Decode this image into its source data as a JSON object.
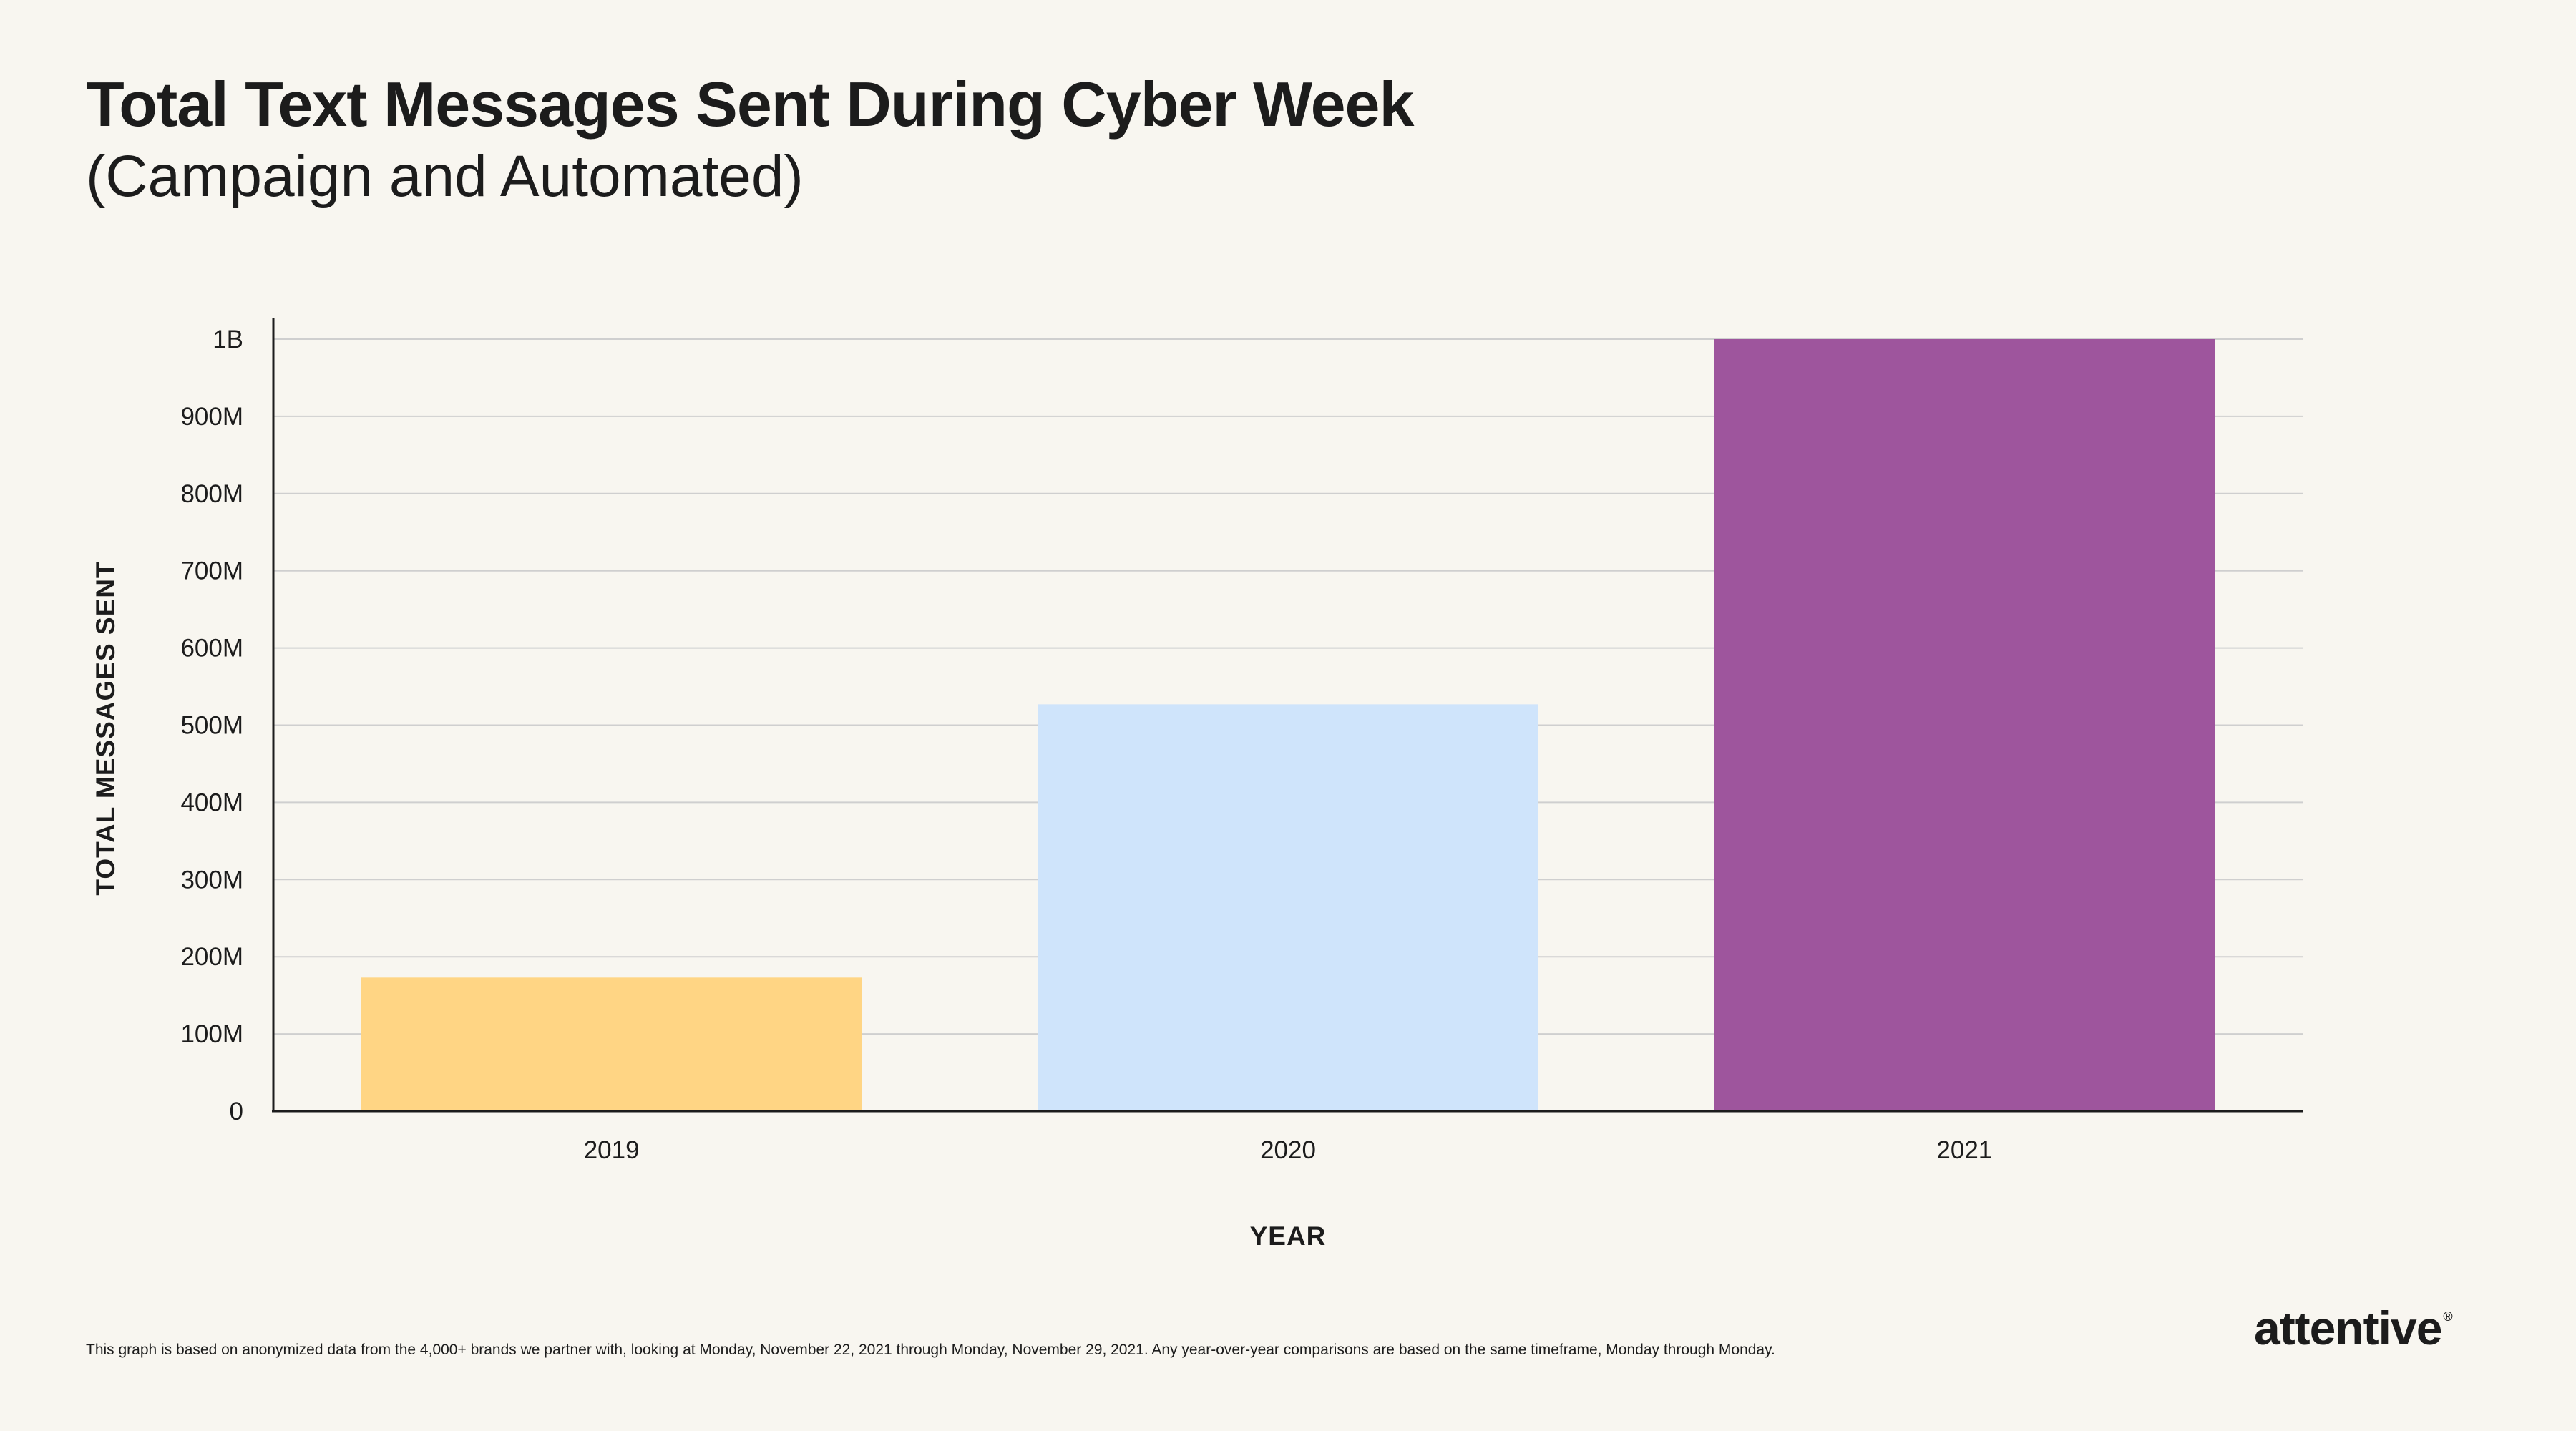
{
  "header": {
    "title": "Total Text Messages Sent During Cyber Week",
    "subtitle": "(Campaign and Automated)"
  },
  "chart_data": {
    "type": "bar",
    "categories": [
      "2019",
      "2020",
      "2021"
    ],
    "values": [
      173000000,
      527000000,
      1000000000
    ],
    "colors": [
      "#ffd584",
      "#cfe4fb",
      "#9e559d"
    ],
    "xlabel": "YEAR",
    "ylabel": "TOTAL MESSAGES SENT",
    "ylim": [
      0,
      1000000000
    ],
    "yticks": [
      0,
      100000000,
      200000000,
      300000000,
      400000000,
      500000000,
      600000000,
      700000000,
      800000000,
      900000000,
      1000000000
    ],
    "ytick_labels": [
      "0",
      "100M",
      "200M",
      "300M",
      "400M",
      "500M",
      "600M",
      "700M",
      "800M",
      "900M",
      "1B"
    ],
    "grid": true,
    "legend": "none"
  },
  "footer": {
    "note": "This graph is based on anonymized data from the 4,000+ brands we partner with, looking at Monday, November 22, 2021 through Monday, November 29, 2021. Any year-over-year comparisons are based on the same timeframe, Monday through Monday.",
    "brand": "attentive",
    "brand_mark": "®"
  }
}
